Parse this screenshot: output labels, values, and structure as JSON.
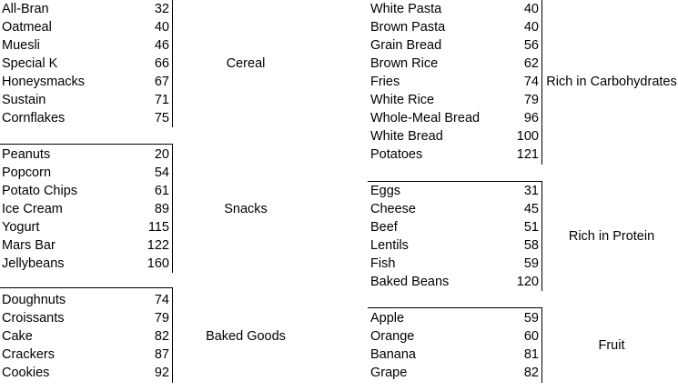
{
  "sheet": {
    "background": "#ffffff",
    "text_color": "#000000",
    "border_color": "#000000"
  },
  "groups": [
    {
      "id": "cereal",
      "label": "Cereal",
      "items": [
        {
          "name": "All-Bran",
          "value": 32
        },
        {
          "name": "Oatmeal",
          "value": 40
        },
        {
          "name": "Muesli",
          "value": 46
        },
        {
          "name": "Special K",
          "value": 66
        },
        {
          "name": "Honeysmacks",
          "value": 67
        },
        {
          "name": "Sustain",
          "value": 71
        },
        {
          "name": "Cornflakes",
          "value": 75
        }
      ]
    },
    {
      "id": "snacks",
      "label": "Snacks",
      "items": [
        {
          "name": "Peanuts",
          "value": 20
        },
        {
          "name": "Popcorn",
          "value": 54
        },
        {
          "name": "Potato Chips",
          "value": 61
        },
        {
          "name": "Ice Cream",
          "value": 89
        },
        {
          "name": "Yogurt",
          "value": 115
        },
        {
          "name": "Mars Bar",
          "value": 122
        },
        {
          "name": "Jellybeans",
          "value": 160
        }
      ]
    },
    {
      "id": "baked-goods",
      "label": "Baked Goods",
      "items": [
        {
          "name": "Doughnuts",
          "value": 74
        },
        {
          "name": "Croissants",
          "value": 79
        },
        {
          "name": "Cake",
          "value": 82
        },
        {
          "name": "Crackers",
          "value": 87
        },
        {
          "name": "Cookies",
          "value": 92
        }
      ]
    },
    {
      "id": "rich-in-carbohydrates",
      "label": "Rich in Carbohydrates",
      "items": [
        {
          "name": "White Pasta",
          "value": 40
        },
        {
          "name": "Brown Pasta",
          "value": 40
        },
        {
          "name": "Grain Bread",
          "value": 56
        },
        {
          "name": "Brown Rice",
          "value": 62
        },
        {
          "name": "Fries",
          "value": 74
        },
        {
          "name": "White Rice",
          "value": 79
        },
        {
          "name": "Whole-Meal Bread",
          "value": 96
        },
        {
          "name": "White Bread",
          "value": 100
        },
        {
          "name": "Potatoes",
          "value": 121
        }
      ]
    },
    {
      "id": "rich-in-protein",
      "label": "Rich in Protein",
      "items": [
        {
          "name": "Eggs",
          "value": 31
        },
        {
          "name": "Cheese",
          "value": 45
        },
        {
          "name": "Beef",
          "value": 51
        },
        {
          "name": "Lentils",
          "value": 58
        },
        {
          "name": "Fish",
          "value": 59
        },
        {
          "name": "Baked Beans",
          "value": 120
        }
      ]
    },
    {
      "id": "fruit",
      "label": "Fruit",
      "items": [
        {
          "name": "Apple",
          "value": 59
        },
        {
          "name": "Orange",
          "value": 60
        },
        {
          "name": "Banana",
          "value": 81
        },
        {
          "name": "Grape",
          "value": 82
        }
      ]
    }
  ]
}
